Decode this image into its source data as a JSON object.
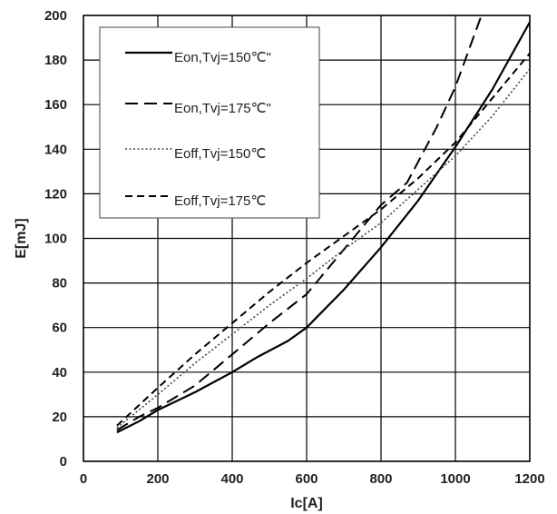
{
  "chart_data": {
    "type": "line",
    "title": "",
    "xlabel": "Ic[A]",
    "ylabel": "E[mJ]",
    "xlim": [
      0,
      1200
    ],
    "ylim": [
      0,
      200
    ],
    "x_ticks": [
      "0",
      "200",
      "400",
      "600",
      "800",
      "1000",
      "1200"
    ],
    "y_ticks": [
      "0",
      "20",
      "40",
      "60",
      "80",
      "100",
      "120",
      "140",
      "160",
      "180",
      "200"
    ],
    "grid": true,
    "legend_position": "top-left",
    "series": [
      {
        "name": "Eon,Tvj=150℃\"",
        "style": "solid",
        "color": "#000000",
        "points": [
          [
            90,
            13
          ],
          [
            150,
            18
          ],
          [
            200,
            23
          ],
          [
            300,
            31
          ],
          [
            400,
            40
          ],
          [
            470,
            47
          ],
          [
            550,
            54
          ],
          [
            600,
            60
          ],
          [
            700,
            77
          ],
          [
            800,
            96
          ],
          [
            900,
            117
          ],
          [
            1000,
            141
          ],
          [
            1100,
            167
          ],
          [
            1200,
            197
          ]
        ]
      },
      {
        "name": "Eon,Tvj=175℃\"",
        "style": "long-dash",
        "color": "#000000",
        "points": [
          [
            90,
            14
          ],
          [
            150,
            20
          ],
          [
            200,
            24
          ],
          [
            300,
            34
          ],
          [
            400,
            48
          ],
          [
            500,
            62
          ],
          [
            600,
            75
          ],
          [
            700,
            95
          ],
          [
            800,
            115
          ],
          [
            870,
            125
          ],
          [
            950,
            150
          ],
          [
            1000,
            168
          ],
          [
            1070,
            200
          ]
        ]
      },
      {
        "name": "Eoff,Tvj=150℃",
        "style": "dotted",
        "color": "#444444",
        "points": [
          [
            90,
            15
          ],
          [
            200,
            30
          ],
          [
            300,
            44
          ],
          [
            400,
            57
          ],
          [
            500,
            70
          ],
          [
            600,
            82
          ],
          [
            700,
            95
          ],
          [
            800,
            107
          ],
          [
            900,
            122
          ],
          [
            1000,
            137
          ],
          [
            1100,
            155
          ],
          [
            1200,
            176
          ]
        ]
      },
      {
        "name": "Eoff,Tvj=175℃",
        "style": "short-dash",
        "color": "#000000",
        "points": [
          [
            90,
            16
          ],
          [
            200,
            33
          ],
          [
            300,
            48
          ],
          [
            400,
            62
          ],
          [
            500,
            76
          ],
          [
            600,
            89
          ],
          [
            700,
            101
          ],
          [
            800,
            113
          ],
          [
            900,
            127
          ],
          [
            1000,
            143
          ],
          [
            1100,
            163
          ],
          [
            1200,
            183
          ]
        ]
      }
    ]
  }
}
